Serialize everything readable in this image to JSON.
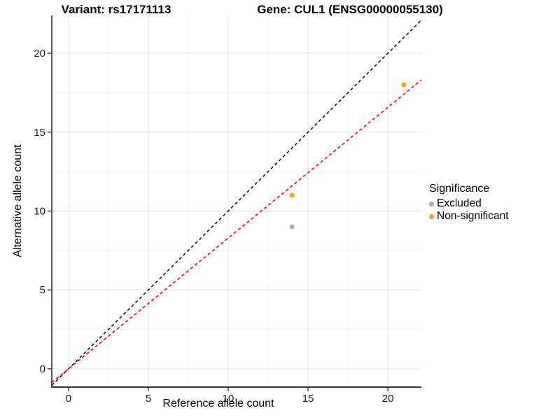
{
  "titles": {
    "variant": "Variant: rs17171113",
    "gene": "Gene: CUL1 (ENSG00000055130)"
  },
  "chart_data": {
    "type": "scatter",
    "title_left": "Variant: rs17171113",
    "title_right": "Gene: CUL1 (ENSG00000055130)",
    "xlabel": "Reference allele count",
    "ylabel": "Alternative allele count",
    "x_ticks": [
      0,
      5,
      10,
      15,
      20
    ],
    "y_ticks": [
      0,
      5,
      10,
      15,
      20
    ],
    "xlim": [
      -1.05,
      22.1
    ],
    "ylim": [
      -1.16,
      22.4
    ],
    "grid": "major+minor",
    "colors": {
      "excluded": "#ACACAC",
      "non_significant": "#F9A11B",
      "identity_line": "#1A1A1A",
      "expected_line": "#FF0000",
      "axis_line": "#333333",
      "grid_major": "#E2E2E2",
      "grid_minor": "#F0F0F0"
    },
    "series": [
      {
        "name": "Excluded",
        "color": "#ACACAC",
        "points": [
          {
            "x": 14,
            "y": 9
          }
        ]
      },
      {
        "name": "Non-significant",
        "color": "#F9A11B",
        "points": [
          {
            "x": 21,
            "y": 18
          },
          {
            "x": 14,
            "y": 11
          }
        ]
      }
    ],
    "lines": [
      {
        "name": "identity-line",
        "style": "dashed",
        "color": "#1A1A1A",
        "slope": 1.0,
        "intercept": 0
      },
      {
        "name": "expected-ratio-line",
        "style": "dashed",
        "color": "#FF0000",
        "slope": 0.8286,
        "intercept": 0
      }
    ],
    "legend": {
      "title": "Significance",
      "position": "right",
      "items": [
        {
          "label": "Excluded",
          "color": "#ACACAC"
        },
        {
          "label": "Non-significant",
          "color": "#F9A11B"
        }
      ]
    }
  }
}
